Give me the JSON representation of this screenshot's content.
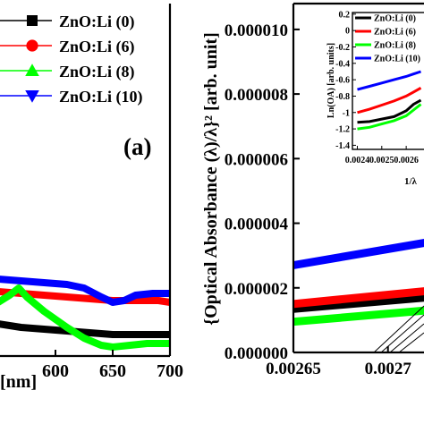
{
  "chart_data": [
    {
      "type": "line",
      "panel_label": "(a)",
      "xlabel": "[nm]",
      "x_ticks": [
        600,
        650,
        700
      ],
      "xlim": [
        550,
        700
      ],
      "legend_position": "top",
      "series": [
        {
          "name": "ZnO:Li (0)",
          "color": "#000000",
          "marker": "square",
          "points": [
            [
              550,
              0.18
            ],
            [
              570,
              0.16
            ],
            [
              590,
              0.15
            ],
            [
              610,
              0.14
            ],
            [
              630,
              0.13
            ],
            [
              650,
              0.12
            ],
            [
              670,
              0.12
            ],
            [
              690,
              0.12
            ],
            [
              700,
              0.12
            ]
          ]
        },
        {
          "name": "ZnO:Li (6)",
          "color": "#ff0000",
          "marker": "circle",
          "points": [
            [
              550,
              0.36
            ],
            [
              570,
              0.35
            ],
            [
              590,
              0.34
            ],
            [
              610,
              0.33
            ],
            [
              630,
              0.32
            ],
            [
              650,
              0.31
            ],
            [
              670,
              0.31
            ],
            [
              690,
              0.31
            ],
            [
              700,
              0.3
            ]
          ]
        },
        {
          "name": "ZnO:Li (8)",
          "color": "#00ff00",
          "marker": "triangle-up",
          "points": [
            [
              550,
              0.3
            ],
            [
              560,
              0.34
            ],
            [
              568,
              0.38
            ],
            [
              575,
              0.33
            ],
            [
              590,
              0.25
            ],
            [
              610,
              0.16
            ],
            [
              625,
              0.1
            ],
            [
              640,
              0.06
            ],
            [
              650,
              0.05
            ],
            [
              665,
              0.06
            ],
            [
              680,
              0.07
            ],
            [
              700,
              0.07
            ]
          ]
        },
        {
          "name": "ZnO:Li (10)",
          "color": "#0000ff",
          "marker": "triangle-down",
          "points": [
            [
              550,
              0.43
            ],
            [
              570,
              0.42
            ],
            [
              590,
              0.41
            ],
            [
              610,
              0.4
            ],
            [
              625,
              0.38
            ],
            [
              640,
              0.33
            ],
            [
              650,
              0.3
            ],
            [
              660,
              0.31
            ],
            [
              670,
              0.34
            ],
            [
              685,
              0.35
            ],
            [
              700,
              0.35
            ]
          ]
        }
      ]
    },
    {
      "type": "line",
      "ylabel": "{Optical Absorbance (λ)/λ}² [arb. unit]",
      "x_ticks": [
        "0.00265",
        "0.0027"
      ],
      "xlim": [
        0.00265,
        0.00272
      ],
      "y_ticks": [
        "0.000000",
        "0.000002",
        "0.000004",
        "0.000006",
        "0.000008",
        "0.000010"
      ],
      "ylim": [
        0,
        1.08e-05
      ],
      "series": [
        {
          "name": "ZnO:Li (0)",
          "color": "#000000",
          "points": [
            [
              0.00265,
              1.35e-06
            ],
            [
              0.00272,
              1.7e-06
            ]
          ]
        },
        {
          "name": "ZnO:Li (6)",
          "color": "#ff0000",
          "points": [
            [
              0.00265,
              1.5e-06
            ],
            [
              0.00272,
              1.9e-06
            ]
          ]
        },
        {
          "name": "ZnO:Li (8)",
          "color": "#00ff00",
          "points": [
            [
              0.00265,
              9.5e-07
            ],
            [
              0.00272,
              1.3e-06
            ]
          ]
        },
        {
          "name": "ZnO:Li (10)",
          "color": "#0000ff",
          "points": [
            [
              0.00265,
              2.7e-06
            ],
            [
              0.00272,
              3.4e-06
            ]
          ]
        }
      ]
    },
    {
      "type": "line",
      "inset": true,
      "xlabel": "1/λ",
      "ylabel": "Ln(OA) [arb. units]",
      "x_ticks": [
        "0.0024",
        "0.0025",
        "0.0026"
      ],
      "xlim": [
        0.00238,
        0.00268
      ],
      "y_ticks": [
        "0.2",
        "0",
        "-0.2",
        "-0.4",
        "-0.6",
        "-0.8",
        "-1",
        "-1.2",
        "-1.4"
      ],
      "ylim": [
        -1.45,
        0.22
      ],
      "series": [
        {
          "name": "ZnO:Li (0)",
          "color": "#000000",
          "points": [
            [
              0.0024,
              -1.12
            ],
            [
              0.00245,
              -1.11
            ],
            [
              0.0025,
              -1.08
            ],
            [
              0.00255,
              -1.05
            ],
            [
              0.0026,
              -0.98
            ],
            [
              0.00263,
              -0.9
            ],
            [
              0.00266,
              -0.85
            ]
          ]
        },
        {
          "name": "ZnO:Li (6)",
          "color": "#ff0000",
          "points": [
            [
              0.0024,
              -1.0
            ],
            [
              0.00245,
              -0.96
            ],
            [
              0.0025,
              -0.91
            ],
            [
              0.00255,
              -0.86
            ],
            [
              0.0026,
              -0.8
            ],
            [
              0.00263,
              -0.75
            ],
            [
              0.00266,
              -0.7
            ]
          ]
        },
        {
          "name": "ZnO:Li (8)",
          "color": "#00ff00",
          "points": [
            [
              0.0024,
              -1.2
            ],
            [
              0.00245,
              -1.18
            ],
            [
              0.0025,
              -1.14
            ],
            [
              0.00255,
              -1.1
            ],
            [
              0.0026,
              -1.04
            ],
            [
              0.00263,
              -0.97
            ],
            [
              0.00266,
              -0.9
            ]
          ]
        },
        {
          "name": "ZnO:Li (10)",
          "color": "#0000ff",
          "points": [
            [
              0.0024,
              -0.72
            ],
            [
              0.00245,
              -0.68
            ],
            [
              0.0025,
              -0.64
            ],
            [
              0.00255,
              -0.6
            ],
            [
              0.0026,
              -0.56
            ],
            [
              0.00263,
              -0.53
            ],
            [
              0.00266,
              -0.5
            ]
          ]
        }
      ]
    }
  ]
}
